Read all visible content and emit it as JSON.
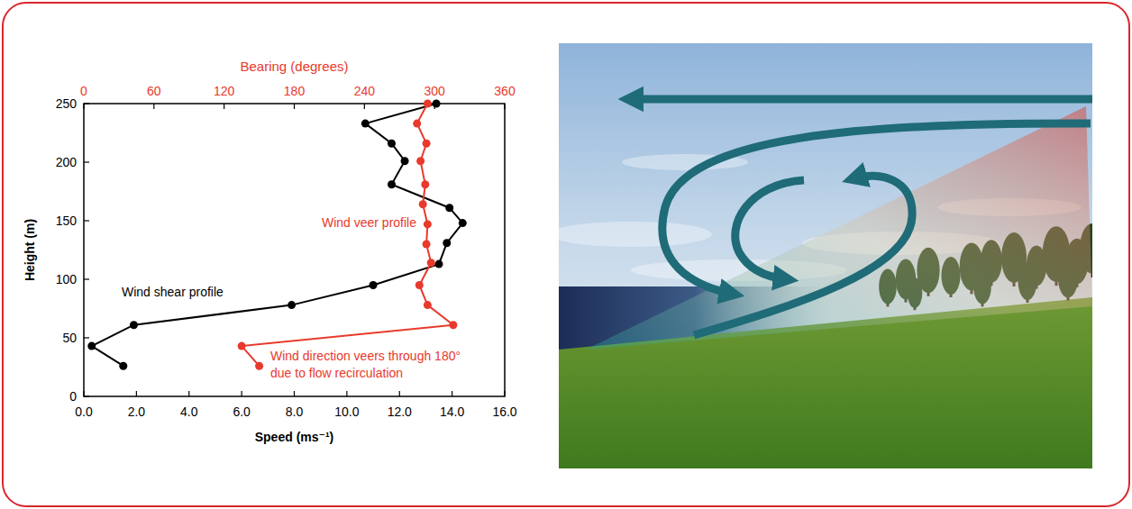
{
  "chart_data": {
    "type": "line",
    "x_label": "Speed (ms⁻¹)",
    "x2_label": "Bearing (degrees)",
    "y_label": "Height (m)",
    "xlim": [
      0,
      16
    ],
    "xticks": [
      {
        "value": 0,
        "label": "0.0"
      },
      {
        "value": 2,
        "label": "2.0"
      },
      {
        "value": 4,
        "label": "4.0"
      },
      {
        "value": 6,
        "label": "6.0"
      },
      {
        "value": 8,
        "label": "8.0"
      },
      {
        "value": 10,
        "label": "10.0"
      },
      {
        "value": 12,
        "label": "12.0"
      },
      {
        "value": 14,
        "label": "14.0"
      },
      {
        "value": 16,
        "label": "16.0"
      }
    ],
    "x2lim": [
      0,
      360
    ],
    "x2ticks": [
      0,
      60,
      120,
      180,
      240,
      300,
      360
    ],
    "ylim": [
      0,
      250
    ],
    "yticks": [
      0,
      50,
      100,
      150,
      200,
      250
    ],
    "series": [
      {
        "name": "Wind shear profile",
        "color": "#000000",
        "marker": "circle",
        "x": [
          13.4,
          10.7,
          11.7,
          12.2,
          11.7,
          13.9,
          14.4,
          13.8,
          13.5,
          11.0,
          7.9,
          1.9,
          0.3,
          1.5
        ],
        "values": [
          250,
          233,
          216,
          201,
          181,
          161,
          148,
          131,
          113,
          95,
          78,
          61,
          43,
          26
        ]
      },
      {
        "name": "Wind veer profile",
        "color": "#e8392c",
        "marker": "circle",
        "axis": "x2",
        "x": [
          294,
          285,
          293,
          288,
          292,
          290,
          294,
          293,
          297,
          287,
          294,
          316,
          135,
          150
        ],
        "values": [
          250,
          233,
          216,
          201,
          181,
          164,
          147,
          130,
          114,
          95,
          78,
          61,
          43,
          26
        ]
      }
    ],
    "annotations": [
      "Wind direction veers through 180° due to flow recirculation"
    ]
  }
}
